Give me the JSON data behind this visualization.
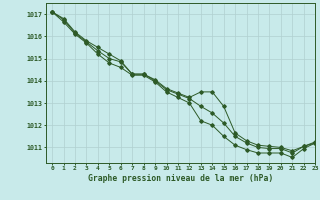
{
  "background_color": "#c8eaea",
  "grid_color": "#b0d0d0",
  "line_color": "#2d5a27",
  "xlabel": "Graphe pression niveau de la mer (hPa)",
  "xlim": [
    -0.5,
    23
  ],
  "ylim": [
    1010.3,
    1017.5
  ],
  "yticks": [
    1011,
    1012,
    1013,
    1014,
    1015,
    1016,
    1017
  ],
  "xticks": [
    0,
    1,
    2,
    3,
    4,
    5,
    6,
    7,
    8,
    9,
    10,
    11,
    12,
    13,
    14,
    15,
    16,
    17,
    18,
    19,
    20,
    21,
    22,
    23
  ],
  "line1": [
    1017.1,
    1016.8,
    1016.2,
    1015.8,
    1015.5,
    1015.2,
    1014.9,
    1014.3,
    1014.3,
    1014.05,
    1013.65,
    1013.45,
    1013.25,
    1013.5,
    1013.5,
    1012.85,
    1011.65,
    1011.3,
    1011.1,
    1011.05,
    1011.0,
    1010.85,
    1011.05,
    1011.2
  ],
  "line2": [
    1017.1,
    1016.75,
    1016.15,
    1015.75,
    1015.35,
    1015.0,
    1014.85,
    1014.3,
    1014.3,
    1014.0,
    1013.6,
    1013.4,
    1013.2,
    1012.85,
    1012.55,
    1012.1,
    1011.5,
    1011.2,
    1011.0,
    1010.95,
    1010.95,
    1010.75,
    1011.05,
    1011.25
  ],
  "line3": [
    1017.1,
    1016.65,
    1016.1,
    1015.7,
    1015.2,
    1014.8,
    1014.6,
    1014.25,
    1014.25,
    1013.95,
    1013.5,
    1013.25,
    1013.0,
    1012.2,
    1012.0,
    1011.5,
    1011.1,
    1010.9,
    1010.75,
    1010.75,
    1010.75,
    1010.55,
    1010.95,
    1011.2
  ],
  "figwidth": 3.2,
  "figheight": 2.0,
  "dpi": 100
}
